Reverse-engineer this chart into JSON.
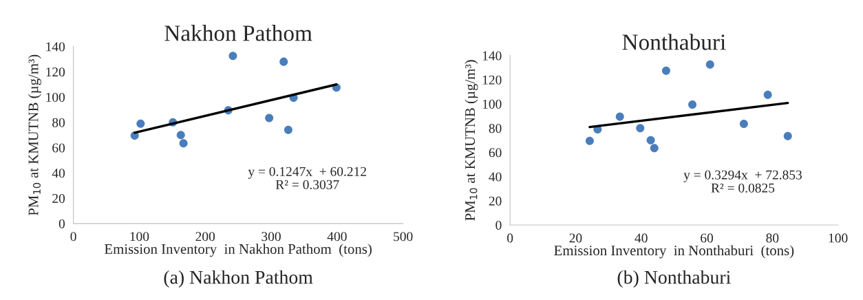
{
  "chart_data": [
    {
      "type": "scatter",
      "title": "Nakhon Pathom",
      "xlabel": "Emission Inventory  in Nakhon Pathom  (tons)",
      "ylabel": "PM$_{10}$ at KMUTNB (µg/m³)",
      "xlim": [
        0,
        500
      ],
      "xticks": [
        0,
        100,
        200,
        300,
        400,
        500
      ],
      "ylim": [
        0,
        140
      ],
      "yticks": [
        0,
        20,
        40,
        60,
        80,
        100,
        120,
        140
      ],
      "grid": false,
      "series": [
        {
          "marker": "circle",
          "color": "#4a7ebb",
          "x": [
            93,
            102,
            151,
            163,
            167,
            235,
            242,
            297,
            319,
            326,
            334,
            399
          ],
          "values": [
            69.5,
            79,
            80,
            70,
            63.5,
            89.5,
            132.5,
            83.5,
            128,
            74,
            99.5,
            107.5
          ]
        },
        {
          "type": "line",
          "color": "#000000",
          "x": [
            93,
            399
          ],
          "values": [
            71.8,
            110.0
          ]
        }
      ],
      "annotations": [
        "y = 0.1247x  + 60.212\nR² = 0.3037",
        "(a) Nakhon Pathom"
      ]
    },
    {
      "type": "scatter",
      "title": "Nonthaburi",
      "xlabel": "Emission Inventory  in Nonthaburi  (tons)",
      "ylabel": "PM$_{10}$ at KMUTNB (µg/m³)",
      "xlim": [
        0,
        100
      ],
      "xticks": [
        0,
        20,
        40,
        60,
        80,
        100
      ],
      "ylim": [
        0,
        140
      ],
      "yticks": [
        0,
        20,
        40,
        60,
        80,
        100,
        120,
        140
      ],
      "grid": false,
      "series": [
        {
          "marker": "circle",
          "color": "#4a7ebb",
          "x": [
            24.3,
            26.7,
            33.5,
            39.7,
            42.9,
            44,
            47.6,
            55.6,
            61,
            71.3,
            78.6,
            84.7
          ],
          "values": [
            69.5,
            79,
            89.5,
            80,
            70,
            63.5,
            127.5,
            99.5,
            132.5,
            83.5,
            107.5,
            73.5
          ]
        },
        {
          "type": "line",
          "color": "#000000",
          "x": [
            24.3,
            84.7
          ],
          "values": [
            80.9,
            100.8
          ]
        }
      ],
      "annotations": [
        "y = 0.3294x  + 72.853\nR² = 0.0825",
        "(b) Nonthaburi"
      ]
    }
  ]
}
